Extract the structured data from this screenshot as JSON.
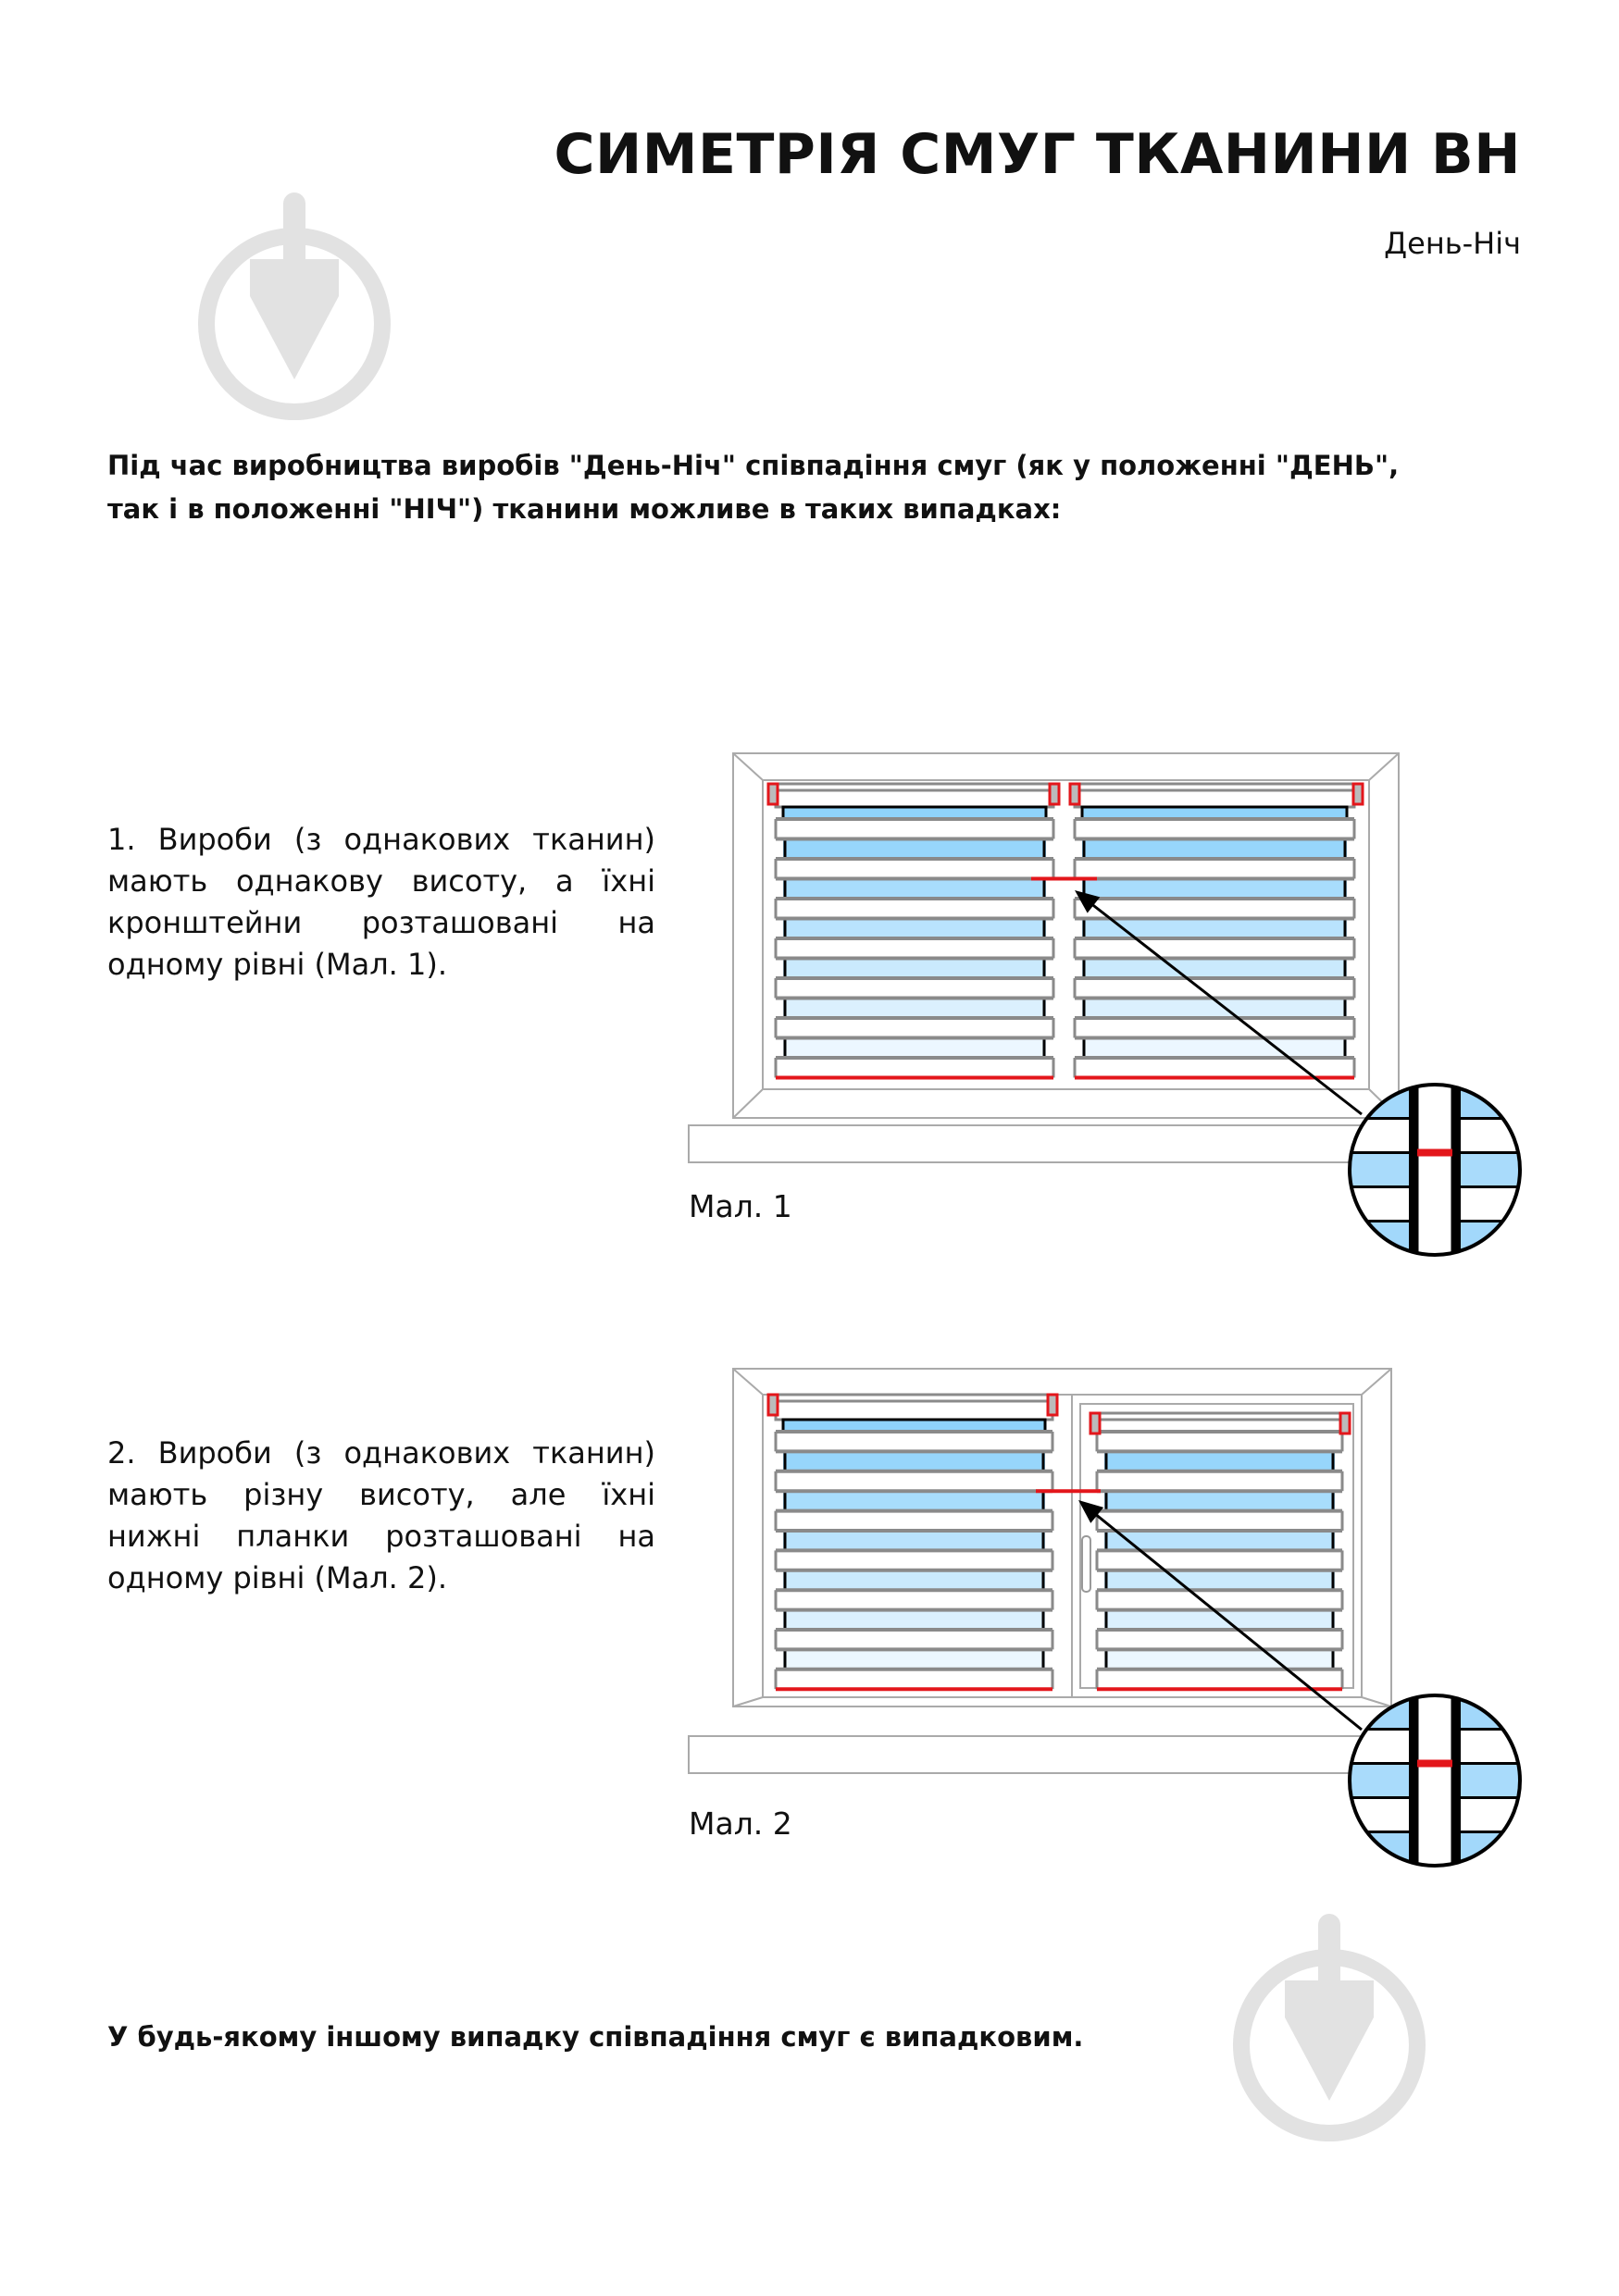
{
  "header": {
    "title": "СИМЕТРІЯ СМУГ ТКАНИНИ ВН",
    "subtitle": "День-Ніч"
  },
  "intro_lines": [
    "Під час виробництва виробів \"День-Ніч\" співпадіння смуг (як у положенні \"ДЕНЬ\",",
    "так і в положенні \"НІЧ\") тканини можливе в таких випадках:"
  ],
  "items": [
    {
      "lines": [
        "1. Вироби (з однакових тканин)",
        "мають однакову висоту, а їхні",
        "кронштейни розташовані на",
        "одному рівні (Мал. 1)."
      ],
      "caption": "Мал. 1"
    },
    {
      "lines": [
        "2. Вироби (з однакових тканин)",
        "мають різну висоту, але їхні",
        "нижні планки розташовані на",
        "одному рівні (Мал. 2)."
      ],
      "caption": "Мал. 2"
    }
  ],
  "outro": "У будь-якому іншому випадку співпадіння смуг є випадковим.",
  "colors": {
    "accent_red": "#e3161b",
    "frame_gray": "#8a8a8a",
    "blue_top": "#8fd3fb",
    "blue_bottom": "#f4faff",
    "watermark": "#e2e2e2"
  },
  "icons": [
    "watermark-trowel-icon"
  ]
}
